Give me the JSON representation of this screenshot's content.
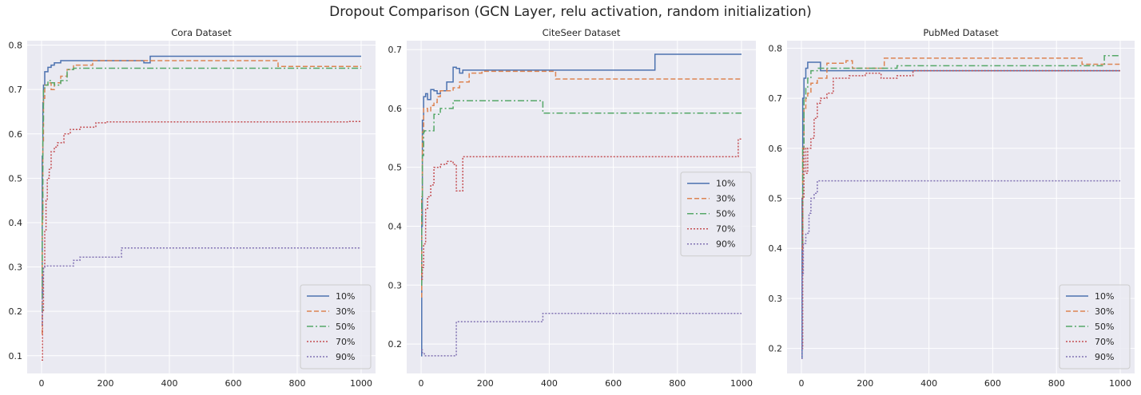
{
  "figure": {
    "title": "Dropout Comparison  (GCN Layer, relu activation, random initialization)"
  },
  "series_styles": {
    "10%": {
      "color": "#4c72b0",
      "dash": ""
    },
    "30%": {
      "color": "#dd8452",
      "dash": "6,3"
    },
    "50%": {
      "color": "#55a868",
      "dash": "8,3,2,3"
    },
    "70%": {
      "color": "#c44e52",
      "dash": "2,2"
    },
    "90%": {
      "color": "#8172b3",
      "dash": "2,2"
    }
  },
  "chart_data": [
    {
      "type": "line",
      "title": "Cora Dataset",
      "xlabel": "",
      "ylabel": "",
      "xlim": [
        -45,
        1045
      ],
      "ylim": [
        0.06,
        0.81
      ],
      "xticks": [
        0,
        200,
        400,
        600,
        800,
        1000
      ],
      "yticks": [
        0.1,
        0.2,
        0.3,
        0.4,
        0.5,
        0.6,
        0.7,
        0.8
      ],
      "grid": true,
      "legend_position": "lower-right",
      "series": [
        {
          "name": "10%",
          "x": [
            0,
            2,
            4,
            6,
            10,
            20,
            30,
            40,
            60,
            80,
            320,
            340,
            500,
            1000
          ],
          "y": [
            0.23,
            0.55,
            0.67,
            0.71,
            0.74,
            0.75,
            0.755,
            0.76,
            0.765,
            0.765,
            0.76,
            0.775,
            0.775,
            0.775
          ]
        },
        {
          "name": "30%",
          "x": [
            0,
            2,
            4,
            6,
            10,
            20,
            30,
            40,
            60,
            80,
            100,
            160,
            180,
            300,
            740,
            1000
          ],
          "y": [
            0.15,
            0.4,
            0.58,
            0.68,
            0.71,
            0.715,
            0.7,
            0.715,
            0.73,
            0.745,
            0.755,
            0.765,
            0.765,
            0.765,
            0.752,
            0.752
          ]
        },
        {
          "name": "50%",
          "x": [
            0,
            2,
            4,
            6,
            10,
            20,
            30,
            40,
            60,
            80,
            100,
            1000
          ],
          "y": [
            0.2,
            0.42,
            0.62,
            0.7,
            0.71,
            0.72,
            0.715,
            0.71,
            0.72,
            0.745,
            0.748,
            0.748
          ]
        },
        {
          "name": "70%",
          "x": [
            0,
            3,
            6,
            10,
            14,
            18,
            24,
            30,
            40,
            50,
            70,
            90,
            120,
            150,
            170,
            200,
            960,
            1000
          ],
          "y": [
            0.09,
            0.2,
            0.3,
            0.38,
            0.45,
            0.5,
            0.52,
            0.56,
            0.57,
            0.58,
            0.6,
            0.61,
            0.615,
            0.615,
            0.625,
            0.627,
            0.628,
            0.628
          ]
        },
        {
          "name": "90%",
          "x": [
            0,
            2,
            4,
            6,
            10,
            50,
            100,
            120,
            250,
            1000
          ],
          "y": [
            0.17,
            0.23,
            0.28,
            0.3,
            0.302,
            0.302,
            0.315,
            0.322,
            0.343,
            0.343
          ]
        }
      ]
    },
    {
      "type": "line",
      "title": "CiteSeer Dataset",
      "xlabel": "",
      "ylabel": "",
      "xlim": [
        -45,
        1045
      ],
      "ylim": [
        0.15,
        0.715
      ],
      "xticks": [
        0,
        200,
        400,
        600,
        800,
        1000
      ],
      "yticks": [
        0.2,
        0.3,
        0.4,
        0.5,
        0.6,
        0.7
      ],
      "grid": true,
      "legend_position": "center-right",
      "series": [
        {
          "name": "10%",
          "x": [
            0,
            2,
            4,
            8,
            14,
            20,
            30,
            40,
            50,
            60,
            80,
            100,
            110,
            120,
            130,
            730,
            1000
          ],
          "y": [
            0.18,
            0.4,
            0.58,
            0.62,
            0.625,
            0.615,
            0.632,
            0.63,
            0.625,
            0.63,
            0.645,
            0.67,
            0.668,
            0.66,
            0.665,
            0.692,
            0.692
          ]
        },
        {
          "name": "30%",
          "x": [
            0,
            2,
            4,
            8,
            14,
            20,
            30,
            40,
            50,
            60,
            80,
            100,
            120,
            150,
            190,
            420,
            1000
          ],
          "y": [
            0.28,
            0.45,
            0.56,
            0.6,
            0.6,
            0.595,
            0.605,
            0.61,
            0.62,
            0.63,
            0.63,
            0.635,
            0.645,
            0.66,
            0.663,
            0.65,
            0.65
          ]
        },
        {
          "name": "50%",
          "x": [
            0,
            2,
            4,
            8,
            10,
            30,
            40,
            60,
            100,
            380,
            1000
          ],
          "y": [
            0.3,
            0.45,
            0.52,
            0.56,
            0.562,
            0.562,
            0.59,
            0.6,
            0.613,
            0.592,
            0.592
          ]
        },
        {
          "name": "70%",
          "x": [
            0,
            4,
            8,
            14,
            20,
            30,
            40,
            60,
            80,
            100,
            110,
            130,
            990,
            1000
          ],
          "y": [
            0.31,
            0.33,
            0.37,
            0.43,
            0.45,
            0.47,
            0.5,
            0.505,
            0.51,
            0.505,
            0.46,
            0.518,
            0.548,
            0.548
          ]
        },
        {
          "name": "90%",
          "x": [
            0,
            4,
            10,
            30,
            60,
            100,
            110,
            380,
            1000
          ],
          "y": [
            0.19,
            0.185,
            0.18,
            0.18,
            0.18,
            0.18,
            0.238,
            0.252,
            0.252
          ]
        }
      ]
    },
    {
      "type": "line",
      "title": "PubMed Dataset",
      "xlabel": "",
      "ylabel": "",
      "xlim": [
        -45,
        1045
      ],
      "ylim": [
        0.15,
        0.815
      ],
      "xticks": [
        0,
        200,
        400,
        600,
        800,
        1000
      ],
      "yticks": [
        0.2,
        0.3,
        0.4,
        0.5,
        0.6,
        0.7,
        0.8
      ],
      "grid": true,
      "legend_position": "lower-right",
      "series": [
        {
          "name": "10%",
          "x": [
            0,
            2,
            4,
            8,
            14,
            20,
            50,
            60,
            1000
          ],
          "y": [
            0.18,
            0.5,
            0.7,
            0.74,
            0.76,
            0.772,
            0.772,
            0.755,
            0.755
          ]
        },
        {
          "name": "30%",
          "x": [
            0,
            4,
            8,
            14,
            20,
            30,
            50,
            80,
            140,
            160,
            260,
            880,
            1000
          ],
          "y": [
            0.4,
            0.6,
            0.68,
            0.7,
            0.71,
            0.73,
            0.74,
            0.77,
            0.775,
            0.76,
            0.78,
            0.768,
            0.768
          ]
        },
        {
          "name": "50%",
          "x": [
            0,
            4,
            8,
            14,
            20,
            30,
            50,
            80,
            150,
            200,
            300,
            950,
            1000
          ],
          "y": [
            0.41,
            0.6,
            0.7,
            0.72,
            0.74,
            0.755,
            0.76,
            0.76,
            0.76,
            0.76,
            0.765,
            0.785,
            0.785
          ]
        },
        {
          "name": "70%",
          "x": [
            0,
            4,
            8,
            14,
            20,
            30,
            40,
            50,
            60,
            80,
            100,
            150,
            200,
            250,
            300,
            350,
            1000
          ],
          "y": [
            0.2,
            0.5,
            0.6,
            0.55,
            0.6,
            0.62,
            0.66,
            0.69,
            0.7,
            0.71,
            0.74,
            0.745,
            0.75,
            0.74,
            0.745,
            0.755,
            0.755
          ]
        },
        {
          "name": "90%",
          "x": [
            0,
            2,
            6,
            14,
            24,
            30,
            40,
            50,
            1000
          ],
          "y": [
            0.18,
            0.35,
            0.41,
            0.43,
            0.47,
            0.5,
            0.51,
            0.535,
            0.535
          ]
        }
      ]
    }
  ]
}
